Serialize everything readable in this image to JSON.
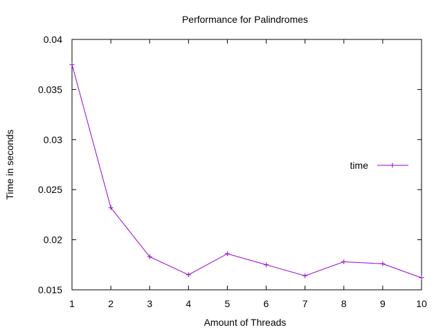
{
  "chart_data": {
    "type": "line",
    "title": "Performance for Palindromes",
    "xlabel": "Amount of Threads",
    "ylabel": "Time in seconds",
    "xlim": [
      1,
      10
    ],
    "ylim": [
      0.015,
      0.04
    ],
    "x_ticks": [
      "1",
      "2",
      "3",
      "4",
      "5",
      "6",
      "7",
      "8",
      "9",
      "10"
    ],
    "y_ticks": [
      "0.015",
      "0.02",
      "0.025",
      "0.03",
      "0.035",
      "0.04"
    ],
    "grid": false,
    "legend_position": "right",
    "series": [
      {
        "name": "time",
        "color": "#9400d3",
        "marker": "plus",
        "x": [
          1,
          2,
          3,
          4,
          5,
          6,
          7,
          8,
          9,
          10
        ],
        "values": [
          0.0375,
          0.0232,
          0.0183,
          0.0165,
          0.0186,
          0.0175,
          0.0164,
          0.0178,
          0.0176,
          0.0162
        ]
      }
    ]
  }
}
